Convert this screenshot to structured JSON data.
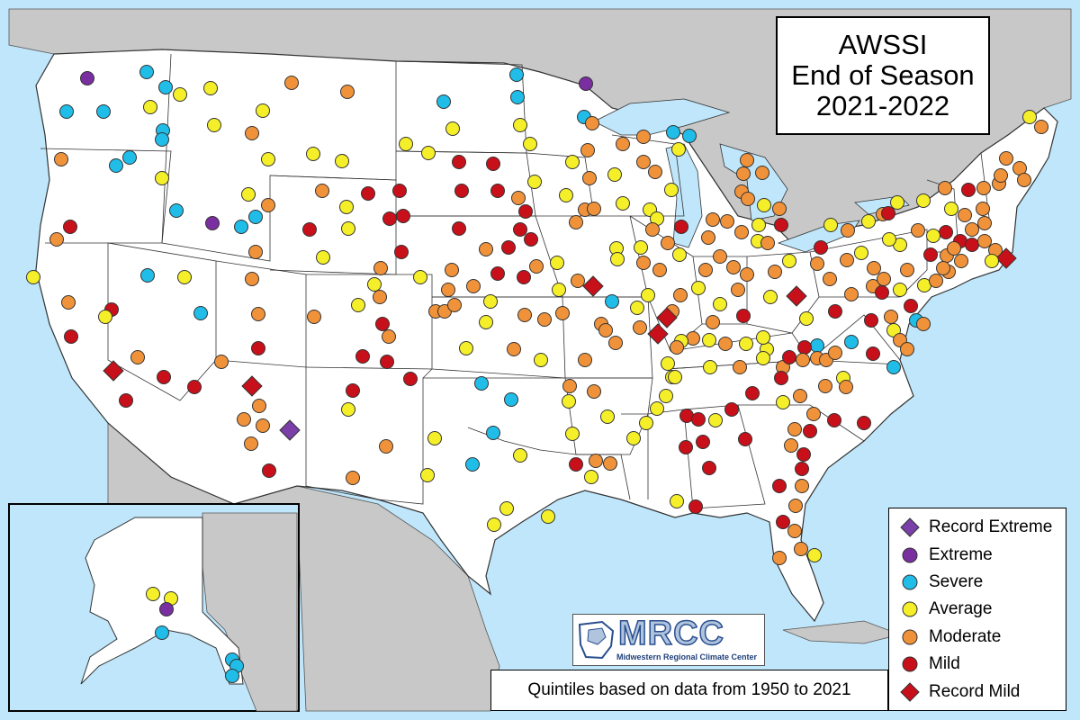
{
  "title": {
    "line1": "AWSSI",
    "line2": "End of Season",
    "line3": "2021-2022"
  },
  "logo": {
    "name": "MRCC",
    "subtitle": "Midwestern Regional Climate Center"
  },
  "note": "Quintiles based on data from 1950 to 2021",
  "colors": {
    "record_extreme": "#7a3fa8",
    "extreme": "#7a2fa0",
    "severe": "#1fbde8",
    "average": "#f5ef2a",
    "moderate": "#f0923a",
    "mild": "#c8101a",
    "record_mild": "#c8101a",
    "ocean": "#bfe6fa",
    "land_other": "#c8c8c8",
    "states": "#ffffff"
  },
  "legend": [
    {
      "key": "record_extreme",
      "label": "Record Extreme",
      "shape": "diamond"
    },
    {
      "key": "extreme",
      "label": "Extreme",
      "shape": "circle"
    },
    {
      "key": "severe",
      "label": "Severe",
      "shape": "circle"
    },
    {
      "key": "average",
      "label": "Average",
      "shape": "circle"
    },
    {
      "key": "moderate",
      "label": "Moderate",
      "shape": "circle"
    },
    {
      "key": "mild",
      "label": "Mild",
      "shape": "circle"
    },
    {
      "key": "record_mild",
      "label": "Record Mild",
      "shape": "diamond"
    }
  ]
}
